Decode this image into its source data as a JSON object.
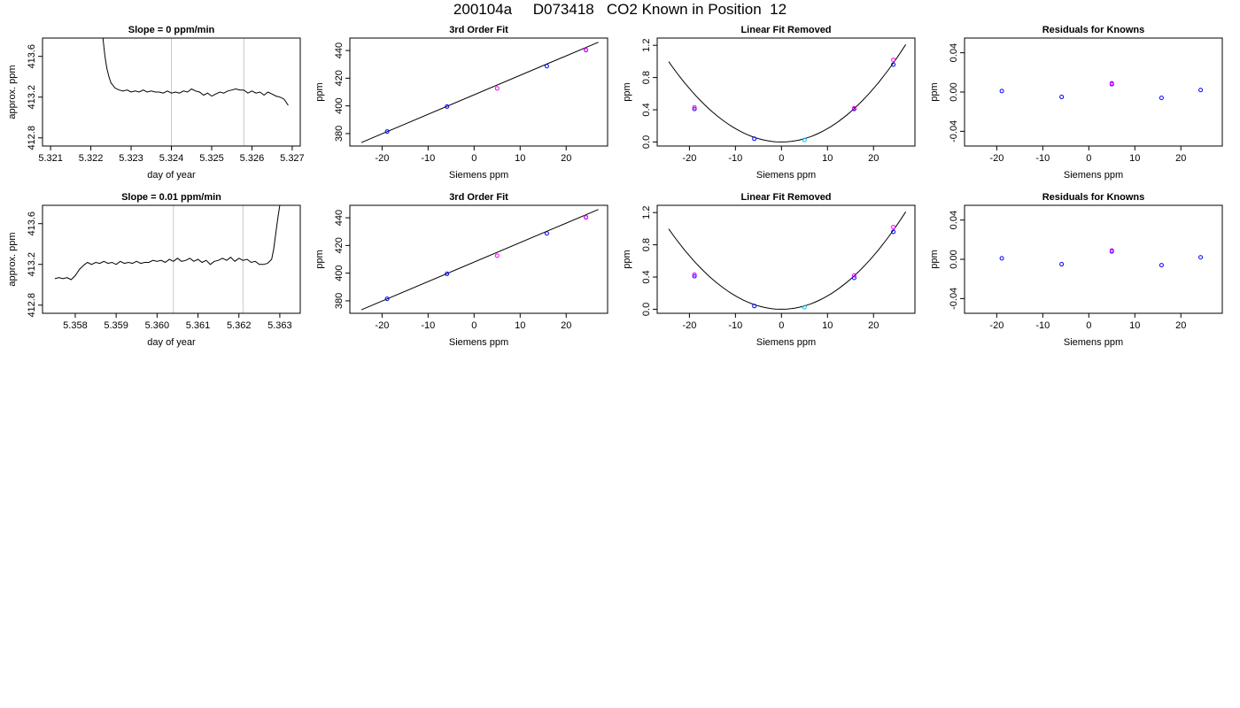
{
  "page": {
    "title": "200104a     D073418   CO2 Known in Position  12"
  },
  "colors": {
    "axis": "#000000",
    "line": "#000000",
    "vline": "#c8c8c8",
    "point_primary": "#0000ff",
    "point_secondary": "#ff00ff",
    "point_tertiary": "#00bfff"
  },
  "chart_data": [
    {
      "type": "line",
      "title": "Slope =  0  ppm/min",
      "xlabel": "day of year",
      "ylabel": "approx. ppm",
      "xlim": [
        5.3208,
        5.3272
      ],
      "ylim": [
        412.72,
        413.78
      ],
      "xticks": [
        5.321,
        5.322,
        5.323,
        5.324,
        5.325,
        5.326,
        5.327
      ],
      "xtick_labels": [
        "5.321",
        "5.322",
        "5.323",
        "5.324",
        "5.325",
        "5.326",
        "5.327"
      ],
      "yticks": [
        412.8,
        413.2,
        413.6
      ],
      "ytick_labels": [
        "412.8",
        "413.2",
        "413.6"
      ],
      "vlines": [
        5.324,
        5.3258
      ],
      "series": [
        {
          "x": [
            5.3223,
            5.32235,
            5.3224,
            5.32245,
            5.3225,
            5.3226,
            5.3227,
            5.3228,
            5.3229,
            5.323,
            5.3231,
            5.3232,
            5.3233,
            5.3234,
            5.3235,
            5.3236,
            5.3237,
            5.3238,
            5.3239,
            5.324,
            5.3241,
            5.3242,
            5.3243,
            5.3244,
            5.3245,
            5.3246,
            5.3247,
            5.3248,
            5.3249,
            5.325,
            5.3251,
            5.3252,
            5.3253,
            5.3254,
            5.3255,
            5.3256,
            5.3257,
            5.3258,
            5.3259,
            5.326,
            5.3261,
            5.3262,
            5.3263,
            5.3264,
            5.3265,
            5.3266,
            5.3267,
            5.3268,
            5.3269
          ],
          "y": [
            413.78,
            413.6,
            413.48,
            413.4,
            413.34,
            413.29,
            413.27,
            413.26,
            413.27,
            413.25,
            413.26,
            413.25,
            413.27,
            413.25,
            413.26,
            413.25,
            413.25,
            413.24,
            413.26,
            413.24,
            413.25,
            413.24,
            413.26,
            413.25,
            413.28,
            413.26,
            413.25,
            413.22,
            413.24,
            413.21,
            413.23,
            413.25,
            413.24,
            413.26,
            413.27,
            413.28,
            413.27,
            413.27,
            413.24,
            413.26,
            413.24,
            413.25,
            413.22,
            413.25,
            413.23,
            413.21,
            413.2,
            413.18,
            413.12
          ]
        }
      ]
    },
    {
      "type": "scatter",
      "title": "3rd Order Fit",
      "xlabel": "Siemens ppm",
      "ylabel": "ppm",
      "xlim": [
        -27,
        29
      ],
      "ylim": [
        371,
        449
      ],
      "xticks": [
        -20,
        -10,
        0,
        10,
        20
      ],
      "xtick_labels": [
        "-20",
        "-10",
        "0",
        "10",
        "20"
      ],
      "yticks": [
        380,
        400,
        420,
        440
      ],
      "ytick_labels": [
        "380",
        "400",
        "420",
        "440"
      ],
      "fit_line": {
        "x": [
          -24.5,
          27
        ],
        "y": [
          373.5,
          446
        ]
      },
      "series": [
        {
          "name": "primary",
          "x": [
            -18.9,
            -5.9,
            15.8,
            24.3
          ],
          "y": [
            381.5,
            399.5,
            428.7,
            440.3
          ]
        },
        {
          "name": "secondary",
          "x": [
            5,
            24.3
          ],
          "y": [
            412.6,
            440.5
          ]
        }
      ]
    },
    {
      "type": "scatter",
      "title": "Linear Fit Removed",
      "xlabel": "Siemens ppm",
      "ylabel": "ppm",
      "xlim": [
        -27,
        29
      ],
      "ylim": [
        -0.05,
        1.29
      ],
      "xticks": [
        -20,
        -10,
        0,
        10,
        20
      ],
      "xtick_labels": [
        "-20",
        "-10",
        "0",
        "10",
        "20"
      ],
      "yticks": [
        0.0,
        0.4,
        0.8,
        1.2
      ],
      "ytick_labels": [
        "0.0",
        "0.4",
        "0.8",
        "1.2"
      ],
      "curve": {
        "a": 0.00166,
        "xmin": -24.5,
        "xmax": 27
      },
      "series": [
        {
          "name": "primary",
          "x": [
            -18.9,
            -5.9,
            15.8,
            24.3
          ],
          "y": [
            0.41,
            0.04,
            0.41,
            0.96
          ]
        },
        {
          "name": "secondary",
          "x": [
            -18.9,
            15.8,
            24.3
          ],
          "y": [
            0.43,
            0.42,
            1.02
          ]
        },
        {
          "name": "tertiary",
          "x": [
            5
          ],
          "y": [
            0.025
          ]
        }
      ]
    },
    {
      "type": "scatter",
      "title": "Residuals for Knowns",
      "xlabel": "Siemens ppm",
      "ylabel": "ppm",
      "xlim": [
        -27,
        29
      ],
      "ylim": [
        -0.055,
        0.055
      ],
      "xticks": [
        -20,
        -10,
        0,
        10,
        20
      ],
      "xtick_labels": [
        "-20",
        "-10",
        "0",
        "10",
        "20"
      ],
      "yticks": [
        -0.04,
        0.0,
        0.04
      ],
      "ytick_labels": [
        "-0.04",
        "0.00",
        "0.04"
      ],
      "series": [
        {
          "name": "primary",
          "x": [
            -18.9,
            -5.9,
            5,
            15.8,
            24.3
          ],
          "y": [
            0.001,
            -0.005,
            0.008,
            -0.006,
            0.002
          ]
        },
        {
          "name": "secondary",
          "x": [
            5
          ],
          "y": [
            0.009
          ]
        }
      ]
    },
    {
      "type": "line",
      "title": "Slope =  0.01  ppm/min",
      "xlabel": "day of year",
      "ylabel": "approx. ppm",
      "xlim": [
        5.3572,
        5.3635
      ],
      "ylim": [
        412.72,
        413.78
      ],
      "xticks": [
        5.358,
        5.359,
        5.36,
        5.361,
        5.362,
        5.363
      ],
      "xtick_labels": [
        "5.358",
        "5.359",
        "5.360",
        "5.361",
        "5.362",
        "5.363"
      ],
      "yticks": [
        412.8,
        413.2,
        413.6
      ],
      "ytick_labels": [
        "412.8",
        "413.2",
        "413.6"
      ],
      "vlines": [
        5.3604,
        5.3621
      ],
      "series": [
        {
          "x": [
            5.3575,
            5.3576,
            5.3577,
            5.3578,
            5.3579,
            5.358,
            5.3581,
            5.3582,
            5.3583,
            5.3584,
            5.3585,
            5.3586,
            5.3587,
            5.3588,
            5.3589,
            5.359,
            5.3591,
            5.3592,
            5.3593,
            5.3594,
            5.3595,
            5.3596,
            5.3597,
            5.3598,
            5.3599,
            5.36,
            5.3601,
            5.3602,
            5.3603,
            5.3604,
            5.3605,
            5.3606,
            5.3607,
            5.3608,
            5.3609,
            5.361,
            5.3611,
            5.3612,
            5.3613,
            5.3614,
            5.3615,
            5.3616,
            5.3617,
            5.3618,
            5.3619,
            5.362,
            5.3621,
            5.3622,
            5.3623,
            5.3624,
            5.3625,
            5.3626,
            5.3627,
            5.3628,
            5.36285,
            5.3629,
            5.36295,
            5.363
          ],
          "y": [
            413.06,
            413.07,
            413.06,
            413.07,
            413.05,
            413.09,
            413.15,
            413.19,
            413.22,
            413.2,
            413.22,
            413.21,
            413.23,
            413.21,
            413.22,
            413.2,
            413.23,
            413.21,
            413.22,
            413.21,
            413.23,
            413.21,
            413.22,
            413.22,
            413.24,
            413.23,
            413.24,
            413.22,
            413.25,
            413.23,
            413.26,
            413.23,
            413.24,
            413.26,
            413.23,
            413.25,
            413.22,
            413.24,
            413.2,
            413.23,
            413.24,
            413.26,
            413.24,
            413.27,
            413.23,
            413.26,
            413.24,
            413.25,
            413.22,
            413.23,
            413.2,
            413.2,
            413.21,
            413.25,
            413.35,
            413.5,
            413.65,
            413.78
          ]
        }
      ]
    },
    {
      "type": "scatter",
      "title": "3rd Order Fit",
      "xlabel": "Siemens ppm",
      "ylabel": "ppm",
      "xlim": [
        -27,
        29
      ],
      "ylim": [
        371,
        449
      ],
      "xticks": [
        -20,
        -10,
        0,
        10,
        20
      ],
      "xtick_labels": [
        "-20",
        "-10",
        "0",
        "10",
        "20"
      ],
      "yticks": [
        380,
        400,
        420,
        440
      ],
      "ytick_labels": [
        "380",
        "400",
        "420",
        "440"
      ],
      "fit_line": {
        "x": [
          -24.5,
          27
        ],
        "y": [
          373.5,
          446
        ]
      },
      "series": [
        {
          "name": "primary",
          "x": [
            -18.9,
            -5.9,
            15.8,
            24.3
          ],
          "y": [
            381.5,
            399.5,
            428.7,
            440.3
          ]
        },
        {
          "name": "secondary",
          "x": [
            5,
            24.3
          ],
          "y": [
            412.6,
            440.5
          ]
        }
      ]
    },
    {
      "type": "scatter",
      "title": "Linear Fit Removed",
      "xlabel": "Siemens ppm",
      "ylabel": "ppm",
      "xlim": [
        -27,
        29
      ],
      "ylim": [
        -0.05,
        1.29
      ],
      "xticks": [
        -20,
        -10,
        0,
        10,
        20
      ],
      "xtick_labels": [
        "-20",
        "-10",
        "0",
        "10",
        "20"
      ],
      "yticks": [
        0.0,
        0.4,
        0.8,
        1.2
      ],
      "ytick_labels": [
        "0.0",
        "0.4",
        "0.8",
        "1.2"
      ],
      "curve": {
        "a": 0.00166,
        "xmin": -24.5,
        "xmax": 27
      },
      "series": [
        {
          "name": "primary",
          "x": [
            -18.9,
            -5.9,
            15.8,
            24.3
          ],
          "y": [
            0.41,
            0.04,
            0.39,
            0.96
          ]
        },
        {
          "name": "secondary",
          "x": [
            -18.9,
            15.8,
            24.3
          ],
          "y": [
            0.43,
            0.42,
            1.02
          ]
        },
        {
          "name": "tertiary",
          "x": [
            5
          ],
          "y": [
            0.025
          ]
        }
      ]
    },
    {
      "type": "scatter",
      "title": "Residuals for Knowns",
      "xlabel": "Siemens ppm",
      "ylabel": "ppm",
      "xlim": [
        -27,
        29
      ],
      "ylim": [
        -0.055,
        0.055
      ],
      "xticks": [
        -20,
        -10,
        0,
        10,
        20
      ],
      "xtick_labels": [
        "-20",
        "-10",
        "0",
        "10",
        "20"
      ],
      "yticks": [
        -0.04,
        0.0,
        0.04
      ],
      "ytick_labels": [
        "-0.04",
        "0.00",
        "0.04"
      ],
      "series": [
        {
          "name": "primary",
          "x": [
            -18.9,
            -5.9,
            5,
            15.8,
            24.3
          ],
          "y": [
            0.001,
            -0.005,
            0.008,
            -0.006,
            0.002
          ]
        },
        {
          "name": "secondary",
          "x": [
            5
          ],
          "y": [
            0.009
          ]
        }
      ]
    }
  ]
}
